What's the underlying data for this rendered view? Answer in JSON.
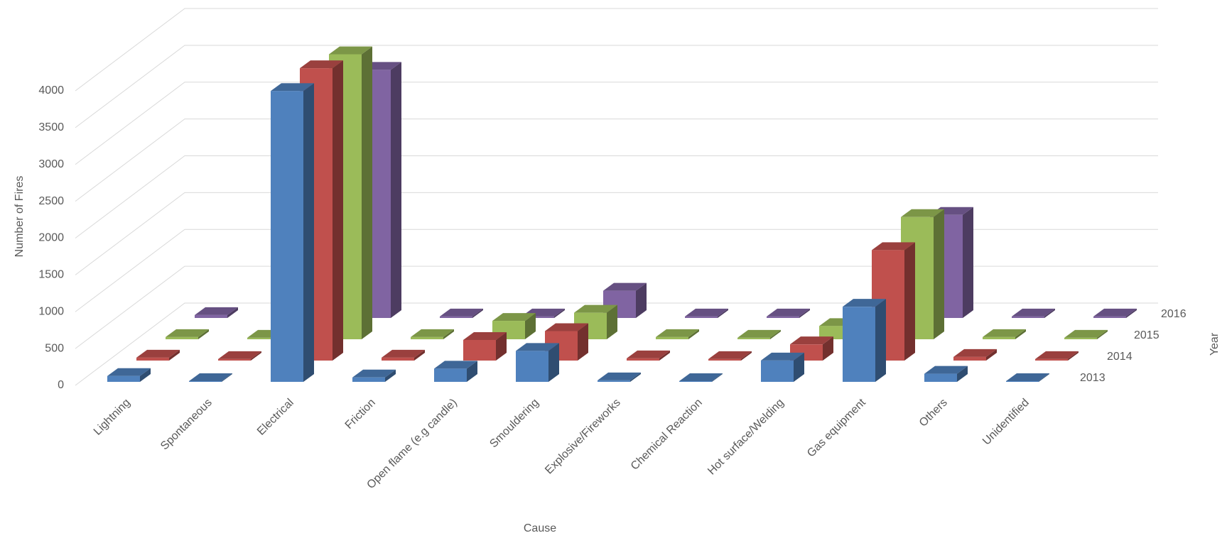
{
  "chart_data": {
    "type": "bar3d",
    "y_label": "Number of Fires",
    "x_label": "Cause",
    "z_label": "Year",
    "categories": [
      "Lightning",
      "Spontaneous",
      "Electrical",
      "Friction",
      "Open flame (e.g candle)",
      "Smouldering",
      "Explosive/Fireworks",
      "Chemical Reaction",
      "Hot surface/Welding",
      "Gas equipment",
      "Others",
      "Unidentified"
    ],
    "series": [
      {
        "name": "2013",
        "color": "#4f81bd",
        "values": [
          80,
          10,
          3950,
          60,
          180,
          420,
          20,
          10,
          290,
          1020,
          110,
          10
        ]
      },
      {
        "name": "2014",
        "color": "#c0504d",
        "values": [
          40,
          20,
          3970,
          40,
          280,
          400,
          30,
          20,
          220,
          1500,
          50,
          20
        ]
      },
      {
        "name": "2015",
        "color": "#9bbb59",
        "values": [
          30,
          20,
          3870,
          30,
          250,
          360,
          30,
          20,
          180,
          1660,
          30,
          20
        ]
      },
      {
        "name": "2016",
        "color": "#8064a2",
        "values": [
          40,
          10,
          3370,
          20,
          20,
          370,
          20,
          20,
          20,
          1400,
          20,
          20
        ]
      }
    ],
    "ylim": [
      0,
      4000
    ],
    "yticks": [
      0,
      500,
      1000,
      1500,
      2000,
      2500,
      3000,
      3500,
      4000
    ],
    "grid": true
  }
}
